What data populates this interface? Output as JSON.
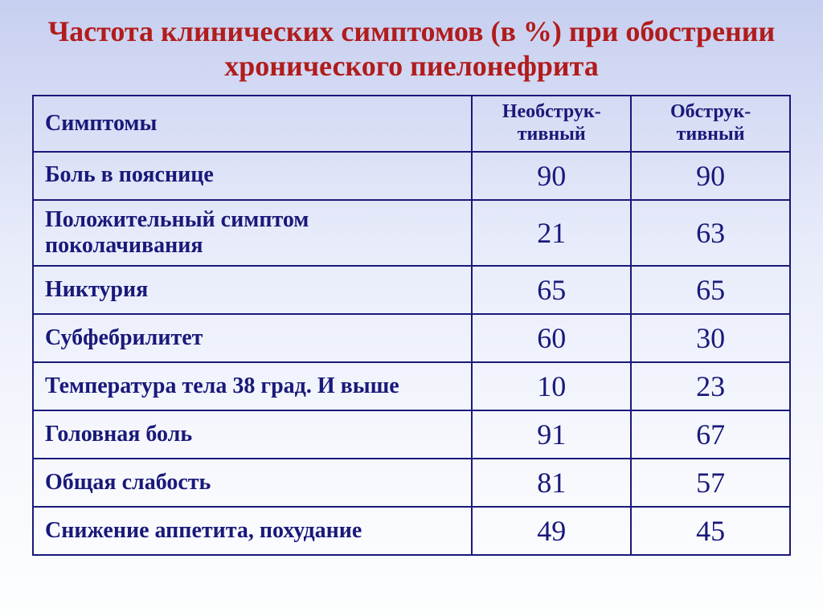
{
  "colors": {
    "title": "#b11c1c",
    "header_text": "#19197a",
    "symptom_text": "#19197a",
    "value_text": "#19197a",
    "border": "#19197a"
  },
  "font_sizes_pt": {
    "title": 27,
    "header_symptoms": 21,
    "header_values": 18,
    "symptom": 21,
    "value": 27
  },
  "title": "Частота клинических симптомов (в %) при обострении хронического пиелонефрита",
  "table": {
    "columns": {
      "symptoms": "Симптомы",
      "non_obstructive": "Необструк-тивный",
      "obstructive": "Обструк-тивный"
    },
    "column_widths_pct": [
      58,
      21,
      21
    ],
    "rows": [
      {
        "symptom": "Боль в пояснице",
        "non_obstructive": 90,
        "obstructive": 90
      },
      {
        "symptom": "Положительный симптом поколачивания",
        "non_obstructive": 21,
        "obstructive": 63,
        "two_line": true
      },
      {
        "symptom": "Никтурия",
        "non_obstructive": 65,
        "obstructive": 65
      },
      {
        "symptom": "Субфебрилитет",
        "non_obstructive": 60,
        "obstructive": 30
      },
      {
        "symptom": "Температура тела 38 град. И выше",
        "non_obstructive": 10,
        "obstructive": 23
      },
      {
        "symptom": "Головная боль",
        "non_obstructive": 91,
        "obstructive": 67
      },
      {
        "symptom": "Общая слабость",
        "non_obstructive": 81,
        "obstructive": 57
      },
      {
        "symptom": "Снижение аппетита, похудание",
        "non_obstructive": 49,
        "obstructive": 45
      }
    ]
  }
}
